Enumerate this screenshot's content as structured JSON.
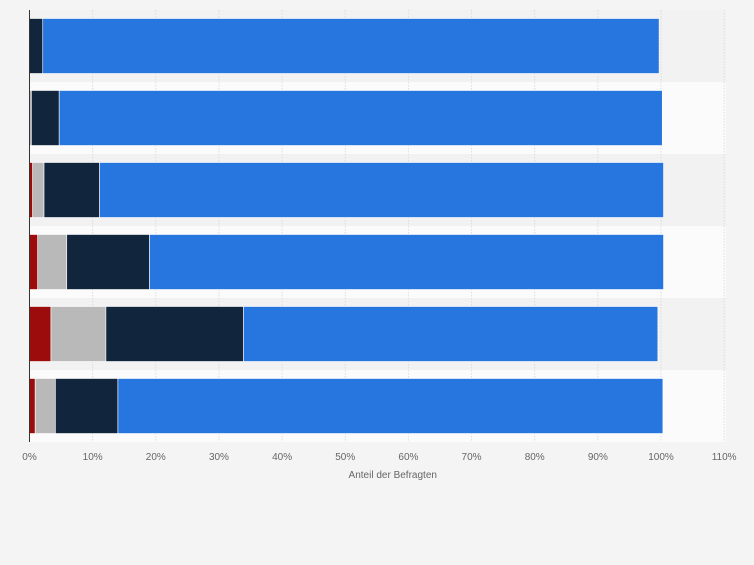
{
  "chart_data": {
    "type": "bar",
    "orientation": "horizontal",
    "stacked": true,
    "title": "",
    "xlabel": "Anteil der Befragten",
    "ylabel": "",
    "categories": [
      "",
      "",
      "",
      "",
      "",
      ""
    ],
    "xlim": [
      0,
      110
    ],
    "xticks": [
      0,
      10,
      20,
      30,
      40,
      50,
      60,
      70,
      80,
      90,
      100,
      110
    ],
    "tick_suffix": "%",
    "grid": true,
    "legend": "none",
    "series": [
      {
        "color": "#9c0c0c",
        "values": [
          0,
          0,
          0.5,
          1.3,
          3.4,
          0.9
        ]
      },
      {
        "color": "#b9b9b9",
        "values": [
          0,
          0.3,
          1.8,
          4.6,
          8.7,
          3.2
        ]
      },
      {
        "color": "#11253c",
        "values": [
          2.1,
          4.4,
          8.8,
          13.1,
          21.8,
          9.9
        ]
      },
      {
        "color": "#2775de",
        "values": [
          97.6,
          95.5,
          89.3,
          81.4,
          65.6,
          86.3
        ]
      }
    ]
  }
}
